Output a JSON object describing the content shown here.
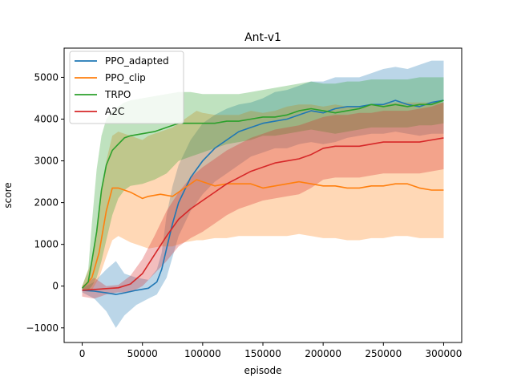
{
  "chart_data": {
    "type": "line",
    "title": "Ant-v1",
    "xlabel": "episode",
    "ylabel": "score",
    "xlim": [
      -15000,
      315000
    ],
    "ylim": [
      -1350,
      5700
    ],
    "xticks": [
      0,
      50000,
      100000,
      150000,
      200000,
      250000,
      300000
    ],
    "xtick_labels": [
      "0",
      "50000",
      "100000",
      "150000",
      "200000",
      "250000",
      "300000"
    ],
    "yticks": [
      -1000,
      0,
      1000,
      2000,
      3000,
      4000,
      5000
    ],
    "ytick_labels": [
      "−1000",
      "0",
      "1000",
      "2000",
      "3000",
      "4000",
      "5000"
    ],
    "grid": false,
    "legend_position": "top-left",
    "series": [
      {
        "name": "PPO_adapted",
        "color": "#1f77b4",
        "x": [
          0,
          10000,
          20000,
          28000,
          35000,
          45000,
          55000,
          62000,
          66000,
          70000,
          75000,
          80000,
          85000,
          90000,
          100000,
          110000,
          120000,
          130000,
          140000,
          150000,
          160000,
          170000,
          180000,
          190000,
          200000,
          210000,
          220000,
          230000,
          240000,
          250000,
          260000,
          270000,
          280000,
          290000,
          300000
        ],
        "mean": [
          -100,
          -120,
          -160,
          -200,
          -160,
          -100,
          -50,
          100,
          400,
          900,
          1500,
          2000,
          2300,
          2600,
          3000,
          3300,
          3500,
          3700,
          3800,
          3900,
          3950,
          4000,
          4100,
          4200,
          4150,
          4250,
          4300,
          4300,
          4350,
          4350,
          4450,
          4350,
          4300,
          4400,
          4450
        ],
        "upper": [
          -50,
          100,
          400,
          600,
          300,
          200,
          150,
          400,
          800,
          1700,
          2400,
          2900,
          3200,
          3500,
          3900,
          4100,
          4250,
          4350,
          4400,
          4500,
          4650,
          4700,
          4800,
          4900,
          4900,
          5000,
          5000,
          5000,
          5100,
          5200,
          5250,
          5200,
          5300,
          5400,
          5400
        ],
        "lower": [
          -150,
          -300,
          -600,
          -1000,
          -700,
          -450,
          -300,
          -200,
          0,
          200,
          700,
          1200,
          1500,
          1800,
          2200,
          2500,
          2700,
          2900,
          3100,
          3200,
          3300,
          3300,
          3400,
          3450,
          3400,
          3450,
          3550,
          3600,
          3650,
          3650,
          3700,
          3650,
          3600,
          3650,
          3650
        ]
      },
      {
        "name": "PPO_clip",
        "color": "#ff7f0e",
        "x": [
          0,
          8000,
          14000,
          20000,
          25000,
          30000,
          40000,
          50000,
          55000,
          65000,
          75000,
          85000,
          95000,
          100000,
          110000,
          120000,
          130000,
          140000,
          150000,
          160000,
          170000,
          180000,
          190000,
          200000,
          210000,
          220000,
          230000,
          240000,
          250000,
          260000,
          270000,
          280000,
          290000,
          300000
        ],
        "mean": [
          -50,
          200,
          800,
          1800,
          2350,
          2350,
          2250,
          2100,
          2150,
          2200,
          2150,
          2350,
          2550,
          2500,
          2400,
          2450,
          2450,
          2450,
          2350,
          2400,
          2450,
          2500,
          2450,
          2400,
          2400,
          2350,
          2350,
          2400,
          2400,
          2450,
          2450,
          2350,
          2300,
          2300
        ],
        "upper": [
          0,
          600,
          1800,
          3000,
          3600,
          3700,
          3600,
          3500,
          3600,
          3700,
          3800,
          4000,
          4200,
          4150,
          4100,
          4100,
          4100,
          4200,
          4150,
          4200,
          4300,
          4350,
          4350,
          4300,
          4350,
          4300,
          4300,
          4350,
          4350,
          4400,
          4400,
          4400,
          4400,
          4400
        ],
        "lower": [
          -100,
          -100,
          200,
          700,
          1100,
          1200,
          1050,
          950,
          900,
          950,
          950,
          1050,
          1100,
          1100,
          1150,
          1150,
          1200,
          1200,
          1200,
          1200,
          1200,
          1250,
          1200,
          1150,
          1150,
          1100,
          1100,
          1150,
          1150,
          1200,
          1200,
          1150,
          1150,
          1150
        ]
      },
      {
        "name": "TRPO",
        "color": "#2ca02c",
        "x": [
          0,
          5000,
          8000,
          12000,
          16000,
          20000,
          25000,
          30000,
          35000,
          40000,
          50000,
          60000,
          70000,
          80000,
          90000,
          100000,
          110000,
          120000,
          130000,
          140000,
          150000,
          160000,
          170000,
          180000,
          190000,
          200000,
          210000,
          220000,
          230000,
          240000,
          250000,
          260000,
          270000,
          280000,
          290000,
          300000
        ],
        "mean": [
          -50,
          100,
          600,
          1300,
          2300,
          2900,
          3250,
          3400,
          3550,
          3600,
          3650,
          3700,
          3800,
          3900,
          3900,
          3900,
          3900,
          3950,
          3950,
          4000,
          4050,
          4050,
          4100,
          4200,
          4250,
          4200,
          4150,
          4200,
          4250,
          4350,
          4300,
          4350,
          4300,
          4350,
          4350,
          4450
        ],
        "upper": [
          0,
          400,
          1500,
          2800,
          3600,
          4000,
          4200,
          4300,
          4400,
          4450,
          4500,
          4550,
          4600,
          4650,
          4650,
          4600,
          4600,
          4600,
          4600,
          4650,
          4700,
          4750,
          4800,
          4850,
          4900,
          4850,
          4850,
          4900,
          4900,
          4950,
          4950,
          4950,
          4950,
          5000,
          5000,
          5000
        ],
        "lower": [
          -100,
          -100,
          0,
          200,
          600,
          1100,
          1700,
          2100,
          2300,
          2400,
          2450,
          2550,
          2700,
          3000,
          3100,
          3200,
          3300,
          3400,
          3450,
          3500,
          3600,
          3600,
          3650,
          3700,
          3750,
          3700,
          3650,
          3700,
          3750,
          3800,
          3800,
          3800,
          3800,
          3850,
          3850,
          3900
        ]
      },
      {
        "name": "A2C",
        "color": "#d62728",
        "x": [
          0,
          10000,
          20000,
          30000,
          40000,
          50000,
          60000,
          70000,
          80000,
          90000,
          100000,
          110000,
          120000,
          130000,
          140000,
          150000,
          160000,
          170000,
          180000,
          190000,
          200000,
          210000,
          220000,
          230000,
          240000,
          250000,
          260000,
          270000,
          280000,
          290000,
          300000
        ],
        "mean": [
          -100,
          -80,
          -60,
          -40,
          50,
          300,
          750,
          1200,
          1600,
          1850,
          2050,
          2250,
          2450,
          2600,
          2750,
          2850,
          2950,
          3000,
          3050,
          3150,
          3300,
          3350,
          3350,
          3350,
          3400,
          3450,
          3450,
          3450,
          3450,
          3500,
          3550
        ],
        "upper": [
          0,
          200,
          0,
          30,
          250,
          650,
          1200,
          1800,
          2250,
          2600,
          2850,
          3050,
          3250,
          3400,
          3550,
          3650,
          3750,
          3800,
          3850,
          3950,
          4050,
          4100,
          4100,
          4150,
          4150,
          4200,
          4200,
          4200,
          4250,
          4300,
          4400
        ],
        "lower": [
          -250,
          -300,
          -200,
          -150,
          -150,
          0,
          300,
          600,
          950,
          1150,
          1300,
          1500,
          1700,
          1850,
          1950,
          2050,
          2100,
          2150,
          2200,
          2350,
          2550,
          2600,
          2600,
          2600,
          2650,
          2700,
          2700,
          2700,
          2700,
          2750,
          2800
        ]
      }
    ]
  }
}
